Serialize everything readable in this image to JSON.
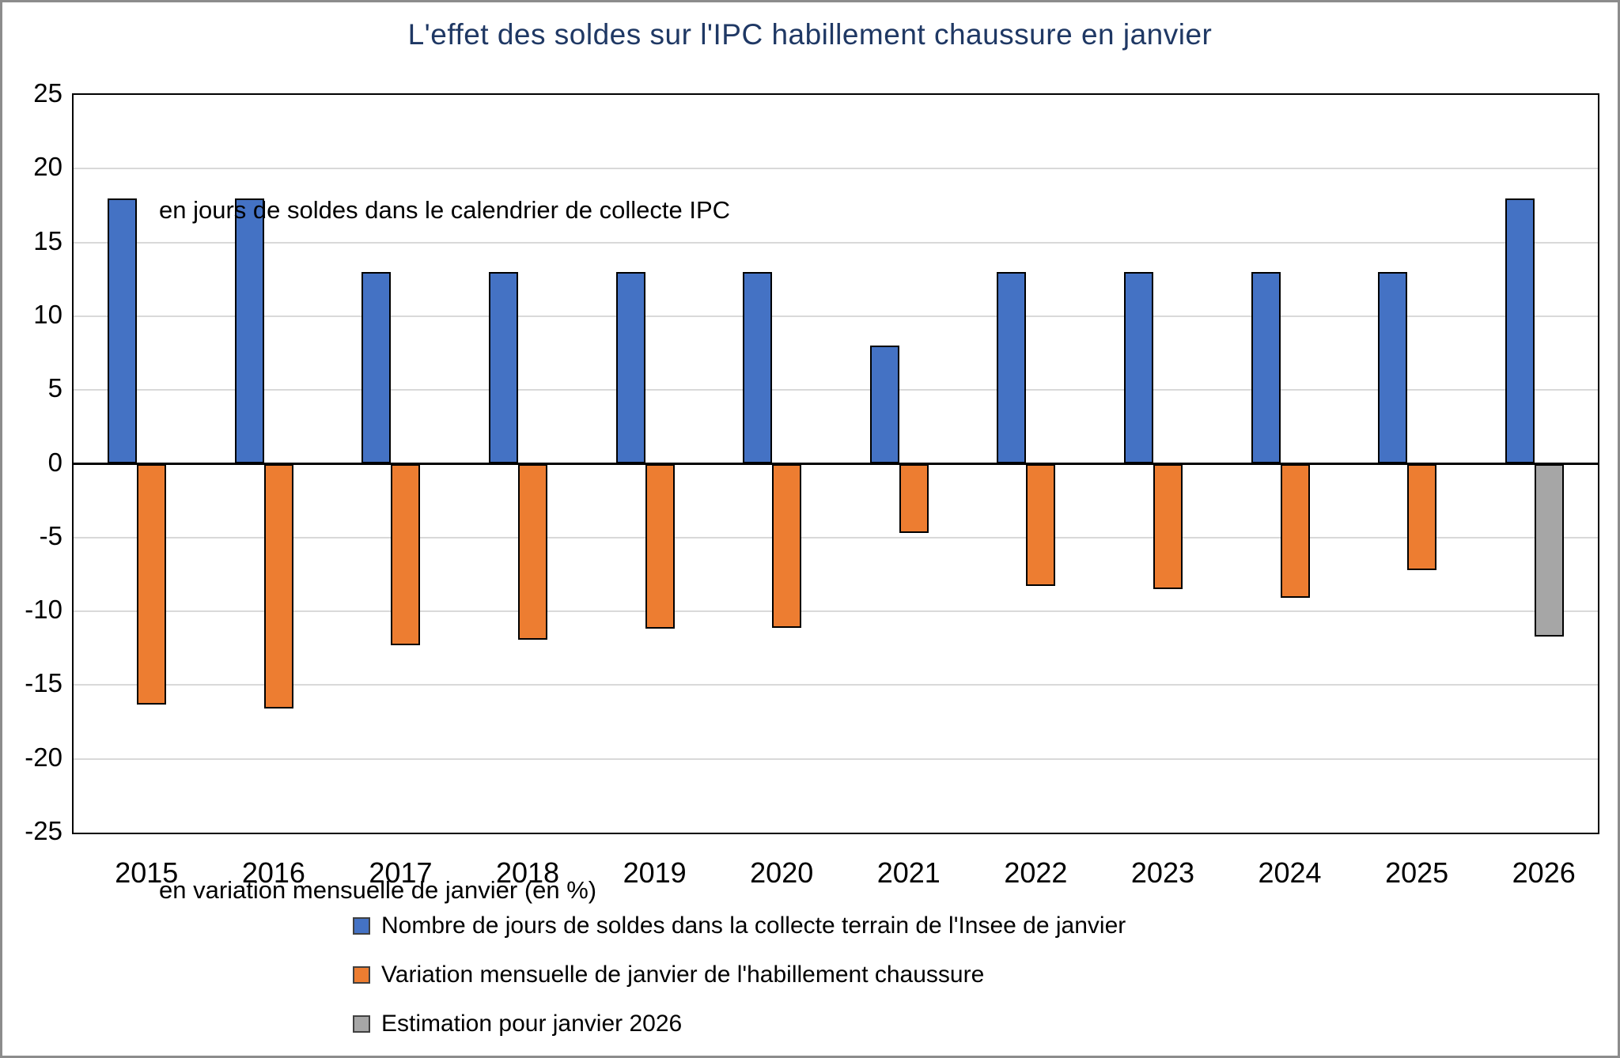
{
  "title": "L'effet des soldes sur l'IPC habillement chaussure en janvier",
  "annotations": {
    "top": "en jours de soldes dans le calendrier de collecte IPC",
    "bottom": "en variation mensuelle de janvier (en %)"
  },
  "colors": {
    "title_text": "#1F3864",
    "series_blue": "#4472C4",
    "series_orange": "#ED7D31",
    "series_gray": "#A6A6A6",
    "bar_border": "#000000",
    "gridline": "#D9D9D9",
    "axis_line": "#000000",
    "outer_frame": "#8C8C8C"
  },
  "y_axis_tick_labels": [
    "25",
    "20",
    "15",
    "10",
    "5",
    "0",
    "-5",
    "-10",
    "-15",
    "-20",
    "-25"
  ],
  "chart_data": {
    "type": "bar",
    "categories": [
      "2015",
      "2016",
      "2017",
      "2018",
      "2019",
      "2020",
      "2021",
      "2022",
      "2023",
      "2024",
      "2025",
      "2026"
    ],
    "series": [
      {
        "key": "days",
        "name": "Nombre de jours de soldes dans la collecte terrain de l'Insee de janvier",
        "color": "#4472C4",
        "values": [
          18,
          18,
          13,
          13,
          13,
          13,
          8,
          13,
          13,
          13,
          13,
          18
        ]
      },
      {
        "key": "variation",
        "name": "Variation mensuelle de janvier de l'habillement chaussure",
        "color": "#ED7D31",
        "values": [
          -16.3,
          -16.6,
          -12.3,
          -11.9,
          -11.2,
          -11.1,
          -4.7,
          -8.3,
          -8.5,
          -9.1,
          -7.2,
          null
        ]
      },
      {
        "key": "estimate",
        "name": "Estimation pour janvier 2026",
        "color": "#A6A6A6",
        "values": [
          null,
          null,
          null,
          null,
          null,
          null,
          null,
          null,
          null,
          null,
          null,
          -11.7
        ]
      }
    ],
    "title": "L'effet des soldes sur l'IPC habillement chaussure en janvier",
    "xlabel": "",
    "ylabel": "",
    "ylim": [
      -25,
      25
    ],
    "ytick_step": 5,
    "grid": true,
    "legend_position": "bottom-left"
  },
  "legend": [
    {
      "label": "Nombre de jours de soldes dans la collecte terrain de l'Insee de janvier",
      "color": "#4472C4"
    },
    {
      "label": "Variation mensuelle de janvier de l'habillement chaussure",
      "color": "#ED7D31"
    },
    {
      "label": "Estimation pour janvier 2026",
      "color": "#A6A6A6"
    }
  ]
}
